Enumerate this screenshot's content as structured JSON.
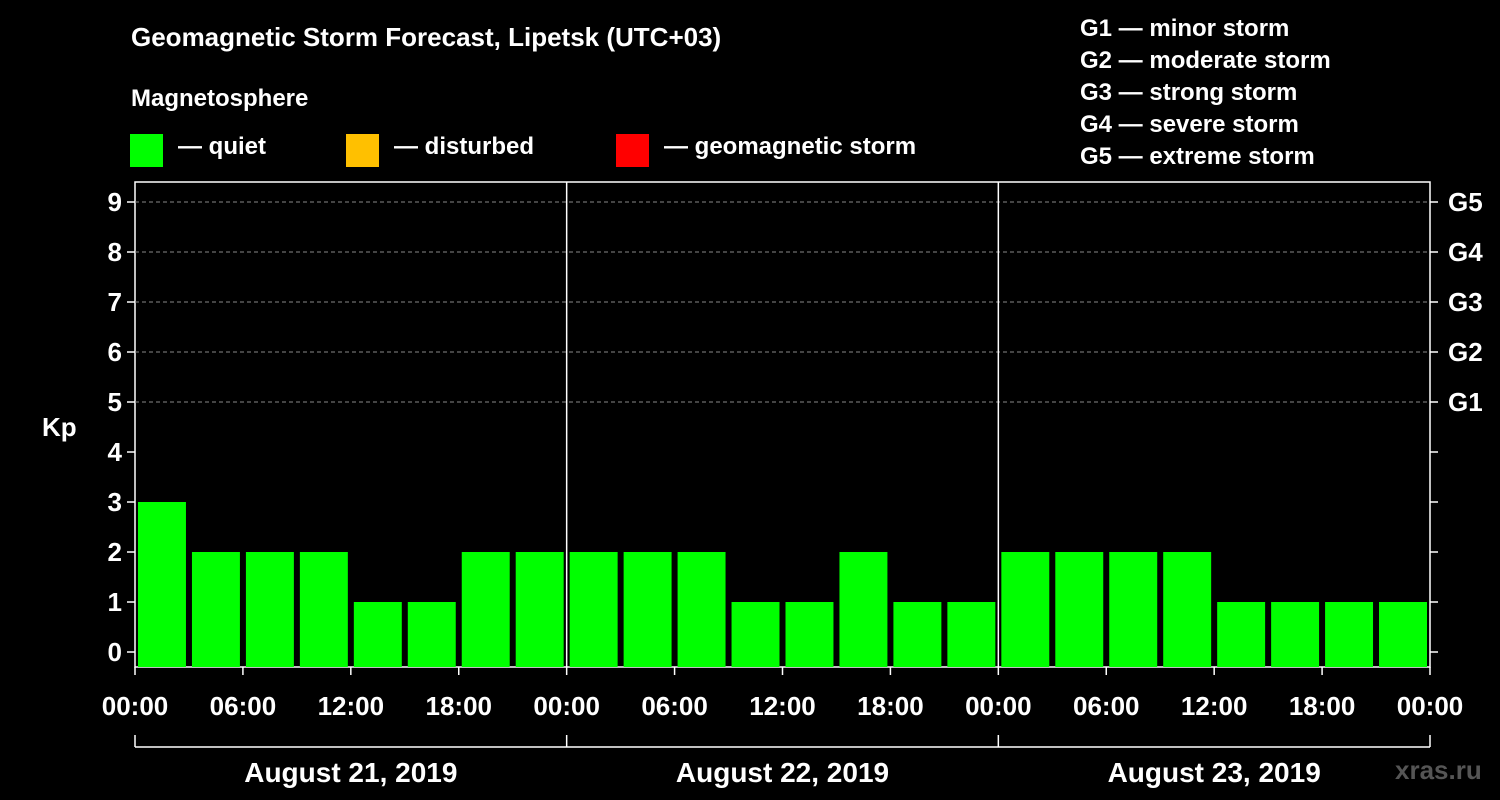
{
  "title": "Geomagnetic Storm Forecast, Lipetsk (UTC+03)",
  "legend": {
    "title": "Magnetosphere",
    "items": [
      {
        "label": "— quiet",
        "color": "#00ff00"
      },
      {
        "label": "— disturbed",
        "color": "#ffc000"
      },
      {
        "label": "— geomagnetic storm",
        "color": "#ff0000"
      }
    ]
  },
  "storm_scale": [
    "G1 — minor storm",
    "G2 — moderate storm",
    "G3 — strong storm",
    "G4 — severe storm",
    "G5 — extreme storm"
  ],
  "watermark": "xras.ru",
  "chart_data": {
    "type": "bar",
    "ylabel": "Kp",
    "ylim": [
      0,
      9
    ],
    "yticks": [
      0,
      1,
      2,
      3,
      4,
      5,
      6,
      7,
      8,
      9
    ],
    "right_ticks": [
      {
        "value": 5,
        "label": "G1"
      },
      {
        "value": 6,
        "label": "G2"
      },
      {
        "value": 7,
        "label": "G3"
      },
      {
        "value": 8,
        "label": "G4"
      },
      {
        "value": 9,
        "label": "G5"
      }
    ],
    "grid": "dashed at Kp 5–9",
    "days": [
      "August 21, 2019",
      "August 22, 2019",
      "August 23, 2019"
    ],
    "xtick_labels": [
      "00:00",
      "06:00",
      "12:00",
      "18:00",
      "00:00",
      "06:00",
      "12:00",
      "18:00",
      "00:00",
      "06:00",
      "12:00",
      "18:00",
      "00:00"
    ],
    "interval_hours": 3,
    "values": [
      3,
      2,
      2,
      2,
      1,
      1,
      2,
      2,
      2,
      2,
      2,
      1,
      1,
      2,
      1,
      1,
      2,
      2,
      2,
      2,
      1,
      1,
      1,
      1
    ],
    "bar_color": "#00ff00"
  }
}
